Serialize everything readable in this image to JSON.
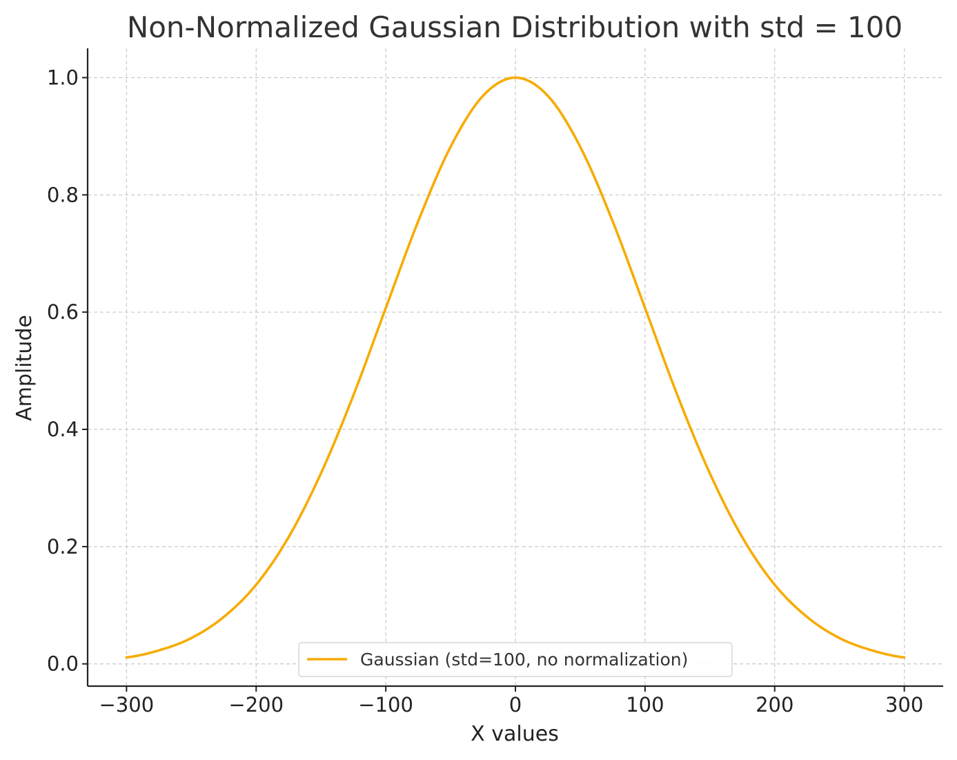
{
  "chart_data": {
    "type": "line",
    "title": "Non-Normalized Gaussian Distribution with std = 100",
    "xlabel": "X values",
    "ylabel": "Amplitude",
    "xlim": [
      -330,
      330
    ],
    "ylim": [
      -0.038,
      1.05
    ],
    "x_ticks": [
      -300,
      -200,
      -100,
      0,
      100,
      200,
      300
    ],
    "x_tick_labels": [
      "−300",
      "−200",
      "−100",
      "0",
      "100",
      "200",
      "300"
    ],
    "y_ticks": [
      0.0,
      0.2,
      0.4,
      0.6,
      0.8,
      1.0
    ],
    "y_tick_labels": [
      "0.0",
      "0.2",
      "0.4",
      "0.6",
      "0.8",
      "1.0"
    ],
    "grid": true,
    "legend_position": "lower-center",
    "series": [
      {
        "name": "Gaussian (std=100, no normalization)",
        "color": "#f7ab00",
        "x": [
          -300,
          -275,
          -250,
          -225,
          -200,
          -175,
          -150,
          -125,
          -100,
          -75,
          -50,
          -25,
          0,
          25,
          50,
          75,
          100,
          125,
          150,
          175,
          200,
          225,
          250,
          275,
          300
        ],
        "y": [
          0.011,
          0.023,
          0.044,
          0.08,
          0.135,
          0.216,
          0.325,
          0.458,
          0.607,
          0.755,
          0.882,
          0.969,
          1.0,
          0.969,
          0.882,
          0.755,
          0.607,
          0.458,
          0.325,
          0.216,
          0.135,
          0.08,
          0.044,
          0.023,
          0.011
        ]
      }
    ]
  }
}
